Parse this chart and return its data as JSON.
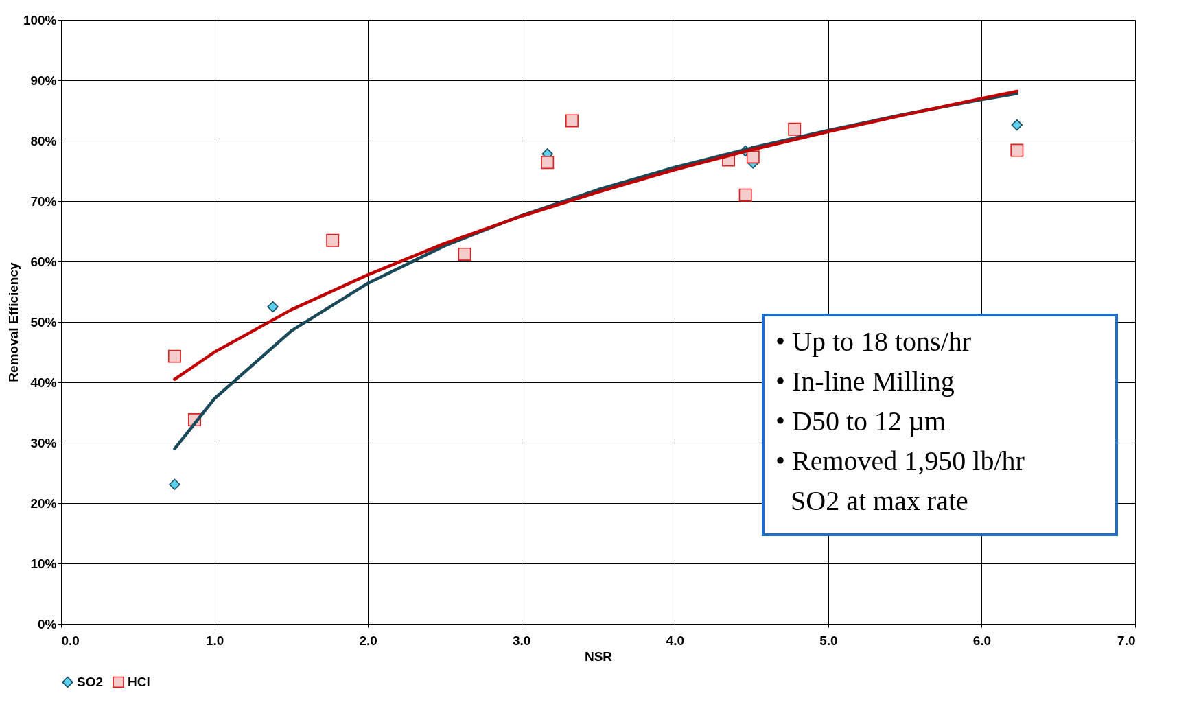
{
  "chart_data": {
    "type": "scatter",
    "xlabel": "NSR",
    "ylabel": "Removal Efficiency",
    "xlim": [
      0,
      7
    ],
    "ylim": [
      0,
      100
    ],
    "xticks": [
      {
        "value": 0,
        "label": "0.0"
      },
      {
        "value": 1,
        "label": "1.0"
      },
      {
        "value": 2,
        "label": "2.0"
      },
      {
        "value": 3,
        "label": "3.0"
      },
      {
        "value": 4,
        "label": "4.0"
      },
      {
        "value": 5,
        "label": "5.0"
      },
      {
        "value": 6,
        "label": "6.0"
      },
      {
        "value": 7,
        "label": "7.0"
      }
    ],
    "yticks": [
      {
        "value": 0,
        "label": "0%"
      },
      {
        "value": 10,
        "label": "10%"
      },
      {
        "value": 20,
        "label": "20%"
      },
      {
        "value": 30,
        "label": "30%"
      },
      {
        "value": 40,
        "label": "40%"
      },
      {
        "value": 50,
        "label": "50%"
      },
      {
        "value": 60,
        "label": "60%"
      },
      {
        "value": 70,
        "label": "70%"
      },
      {
        "value": 80,
        "label": "80%"
      },
      {
        "value": 90,
        "label": "90%"
      },
      {
        "value": 100,
        "label": "100%"
      }
    ],
    "grid": true,
    "legend": "bottom",
    "series": [
      {
        "name": "SO2",
        "type": "scatter",
        "marker": "diamond",
        "color": "#5bd0f0",
        "x": [
          0.74,
          1.38,
          3.17,
          4.46,
          4.51,
          6.23
        ],
        "values": [
          23.1,
          52.5,
          77.8,
          78.3,
          76.3,
          82.6
        ]
      },
      {
        "name": "HCl",
        "type": "scatter",
        "marker": "square",
        "color": "#e02020",
        "x": [
          0.74,
          0.87,
          1.77,
          2.63,
          3.17,
          3.33,
          4.35,
          4.46,
          4.51,
          4.78,
          6.23
        ],
        "values": [
          44.3,
          33.8,
          63.5,
          61.2,
          76.4,
          83.3,
          76.8,
          71.0,
          77.3,
          81.9,
          78.4
        ]
      },
      {
        "type": "line",
        "color": "#1a4a5a",
        "x": [
          0.74,
          1,
          1.5,
          2,
          2.5,
          3,
          3.5,
          4,
          4.5,
          5,
          5.5,
          6,
          6.23
        ],
        "values": [
          29.0,
          37.3,
          48.5,
          56.4,
          62.6,
          67.6,
          71.9,
          75.6,
          78.8,
          81.7,
          84.4,
          86.8,
          87.8
        ]
      },
      {
        "type": "line",
        "color": "#c00000",
        "x": [
          0.74,
          1,
          1.5,
          2,
          2.5,
          3,
          3.5,
          4,
          4.5,
          5,
          5.5,
          6,
          6.23
        ],
        "values": [
          40.5,
          45.0,
          52.0,
          57.8,
          63.0,
          67.5,
          71.5,
          75.2,
          78.5,
          81.5,
          84.3,
          87.0,
          88.2
        ]
      }
    ],
    "annotations": [
      "• Up to 18 tons/hr",
      "• In-line Milling",
      "• D50 to 12 µm",
      "• Removed 1,950 lb/hr",
      "SO2 at max rate"
    ]
  }
}
